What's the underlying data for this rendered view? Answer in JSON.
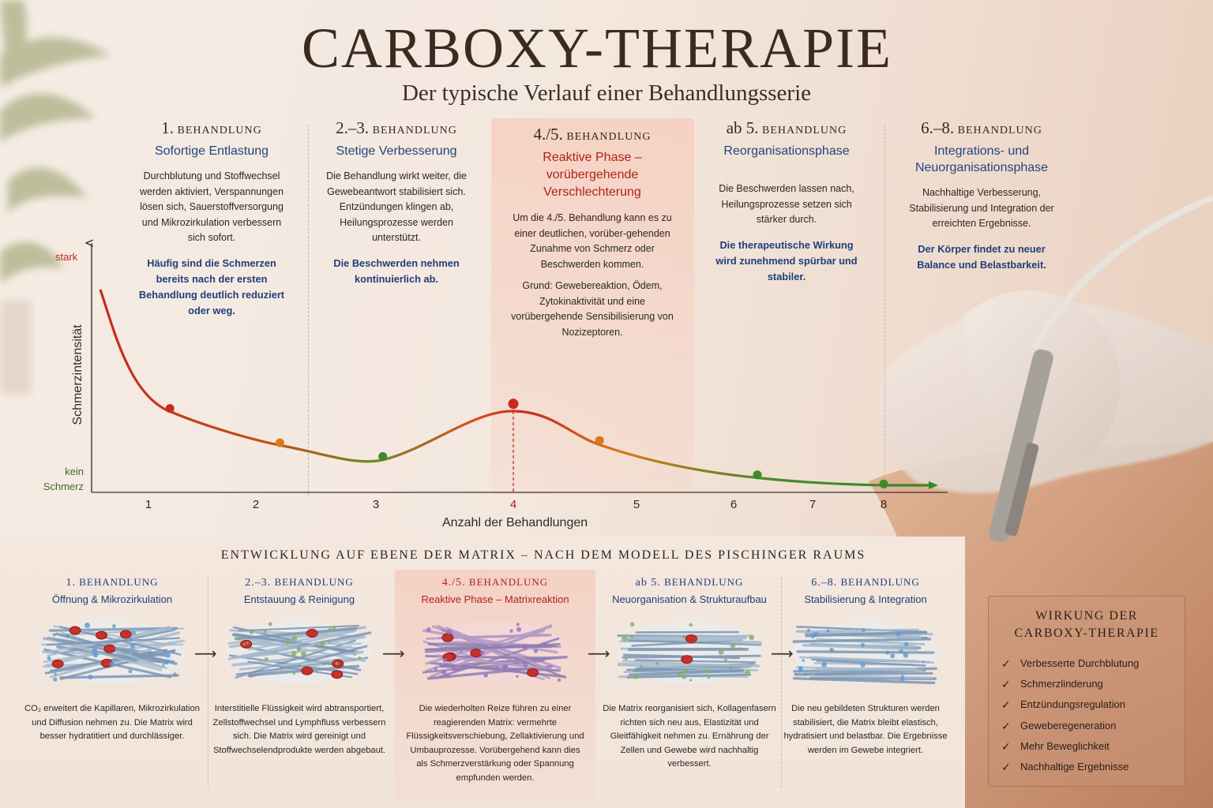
{
  "header": {
    "title": "CARBOXY-THERAPIE",
    "subtitle": "Der typische Verlauf einer Behandlungsserie"
  },
  "phases": [
    {
      "num": "1.",
      "head": "BEHANDLUNG",
      "name": "Sofortige Entlastung",
      "desc": "Durchblutung und Stoffwechsel werden aktiviert, Verspannungen lösen sich, Sauerstoffversorgung und Mikrozirkulation verbessern sich sofort.",
      "note": "Häufig sind die Schmerzen bereits nach der ersten Behandlung deutlich reduziert oder weg."
    },
    {
      "num": "2.–3.",
      "head": "BEHANDLUNG",
      "name": "Stetige Verbesserung",
      "desc": "Die Behandlung wirkt weiter, die Gewebeantwort stabilisiert sich. Entzündungen klingen ab, Heilungsprozesse werden unterstützt.",
      "note": "Die Beschwerden nehmen kontinuierlich ab."
    },
    {
      "num": "4./5.",
      "head": "BEHANDLUNG",
      "name": "Reaktive Phase – vorübergehende Verschlechterung",
      "desc": "Um die 4./5. Behandlung kann es zu einer deutlichen, vorüber-gehenden Zunahme von Schmerz oder Beschwerden kommen.",
      "desc2": "Grund: Gewebereaktion, Ödem, Zytokinaktivität und eine vorübergehende Sensibilisierung von Nozizeptoren."
    },
    {
      "num": "ab 5.",
      "head": "BEHANDLUNG",
      "name": "Reorganisationsphase",
      "desc": "Die Beschwerden lassen nach, Heilungsprozesse setzen sich stärker durch.",
      "note": "Die therapeutische Wirkung wird zunehmend spürbar und stabiler."
    },
    {
      "num": "6.–8.",
      "head": "BEHANDLUNG",
      "name": "Integrations- und Neuorganisationsphase",
      "desc": "Nachhaltige Verbesserung, Stabilisierung und Integration der erreichten Ergebnisse.",
      "note": "Der Körper findet zu neuer Balance und Belastbarkeit."
    }
  ],
  "chart": {
    "y_top": "stark",
    "y_bottom": "kein Schmerz",
    "y_title": "Schmerzintensität",
    "x_title": "Anzahl der Behandlungen",
    "x_ticks": [
      "1",
      "2",
      "3",
      "4",
      "5",
      "6",
      "7",
      "8"
    ],
    "highlight_tick": "4"
  },
  "chart_data": {
    "type": "line",
    "xlabel": "Anzahl der Behandlungen",
    "ylabel": "Schmerzintensität",
    "x": [
      0.5,
      1.2,
      2.2,
      3.05,
      4.0,
      4.7,
      6.3,
      8.0
    ],
    "y": [
      0.92,
      0.36,
      0.21,
      0.15,
      0.38,
      0.22,
      0.07,
      0.03
    ],
    "ylim": [
      0,
      1
    ]
  },
  "matrix": {
    "title": "ENTWICKLUNG AUF EBENE DER MATRIX – NACH DEM MODELL DES PISCHINGER RAUMS",
    "stages": [
      {
        "num": "1.",
        "head": "BEHANDLUNG",
        "name": "Öffnung & Mikrozirkulation",
        "text": "CO₂ erweitert die Kapillaren, Mikrozirkulation und Diffusion nehmen zu. Die Matrix wird besser hydratitiert und durchlässiger."
      },
      {
        "num": "2.–3.",
        "head": "BEHANDLUNG",
        "name": "Entstauung & Reinigung",
        "text": "Interstitielle Flüssigkeit wird abtransportiert, Zellstoffwechsel und Lymphfluss verbessern sich. Die Matrix wird gereinigt und Stoffwechselendprodukte werden abgebaut."
      },
      {
        "num": "4./5.",
        "head": "BEHANDLUNG",
        "name": "Reaktive Phase – Matrixreaktion",
        "text": "Die wiederholten Reize führen zu einer reagierenden Matrix: vermehrte Flüssigkeitsverschiebung, Zellaktivierung und Umbauprozesse. Vorübergehend kann dies als Schmerzverstärkung oder Spannung empfunden werden."
      },
      {
        "num": "ab 5.",
        "head": "BEHANDLUNG",
        "name": "Neuorganisation & Strukturaufbau",
        "text": "Die Matrix reorganisiert sich, Kollagenfasern richten sich neu aus, Elastizität und Gleitfähigkeit nehmen zu. Ernährung der Zellen und Gewebe wird nachhaltig verbessert."
      },
      {
        "num": "6.–8.",
        "head": "BEHANDLUNG",
        "name": "Stabilisierung & Integration",
        "text": "Die neu gebildeten Strukturen werden stabilisiert, die Matrix bleibt elastisch, hydratisiert und belastbar. Die Ergebnisse werden im Gewebe integriert."
      }
    ]
  },
  "effects": {
    "title": "WIRKUNG DER CARBOXY-THERAPIE",
    "items": [
      "Verbesserte Durchblutung",
      "Schmerzlinderung",
      "Entzündungsregulation",
      "Geweberegeneration",
      "Mehr Beweglichkeit",
      "Nachhaltige Ergebnisse"
    ]
  },
  "colors": {
    "accent_blue": "#23457f",
    "accent_red": "#b2201b",
    "curve_red": "#c62a1c",
    "curve_orange": "#d97a1a",
    "curve_green": "#3f8a2c"
  }
}
